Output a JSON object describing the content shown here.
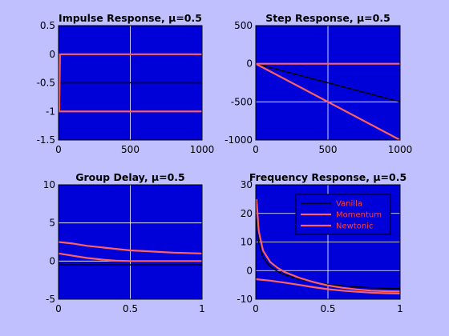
{
  "chart_data": [
    {
      "type": "line",
      "title": "Impulse Response, μ=0.5",
      "xlabel": "",
      "ylabel": "",
      "xlim": [
        0,
        1000
      ],
      "ylim": [
        -1.5,
        0.5
      ],
      "xticks": [
        "0",
        "500",
        "1000"
      ],
      "yticks": [
        "0.5",
        "0",
        "-0.5",
        "-1",
        "-1.5"
      ],
      "grid": true,
      "series": [
        {
          "color": "#000000",
          "x": [
            0,
            5,
            10,
            1000
          ],
          "y": [
            -0.5,
            -0.5,
            -0.5,
            -0.5
          ]
        },
        {
          "color": "#ff6060",
          "x": [
            0,
            5,
            10,
            1000
          ],
          "y": [
            -0.3,
            -1.0,
            0.0,
            0.0
          ]
        },
        {
          "color": "#ff6060",
          "x": [
            0,
            8,
            20,
            1000
          ],
          "y": [
            -1.0,
            -1.0,
            -1.0,
            -1.0
          ]
        }
      ]
    },
    {
      "type": "line",
      "title": "Step Response, μ=0.5",
      "xlabel": "",
      "ylabel": "",
      "xlim": [
        0,
        1000
      ],
      "ylim": [
        -1000,
        500
      ],
      "xticks": [
        "0",
        "500",
        "1000"
      ],
      "yticks": [
        "500",
        "0",
        "-500",
        "-1000"
      ],
      "grid": true,
      "series": [
        {
          "color": "#000000",
          "x": [
            0,
            1000
          ],
          "y": [
            0,
            -500
          ]
        },
        {
          "color": "#ff6060",
          "x": [
            0,
            1000
          ],
          "y": [
            0,
            0
          ]
        },
        {
          "color": "#ff6060",
          "x": [
            0,
            1000
          ],
          "y": [
            0,
            -1000
          ]
        }
      ]
    },
    {
      "type": "line",
      "title": "Group Delay, μ=0.5",
      "xlabel": "",
      "ylabel": "",
      "xlim": [
        0,
        1
      ],
      "ylim": [
        -5,
        10
      ],
      "xticks": [
        "0",
        "0.5",
        "1"
      ],
      "yticks": [
        "10",
        "5",
        "0",
        "-5"
      ],
      "grid": true,
      "series": [
        {
          "color": "#000000",
          "x": [
            0,
            0.5,
            1
          ],
          "y": [
            -0.5,
            -0.5,
            -0.5
          ]
        },
        {
          "color": "#ff6060",
          "x": [
            0,
            0.1,
            0.2,
            0.3,
            0.4,
            0.5,
            0.6,
            0.7,
            0.8,
            0.9,
            1.0
          ],
          "y": [
            2.5,
            2.3,
            2.0,
            1.8,
            1.6,
            1.4,
            1.3,
            1.2,
            1.1,
            1.05,
            1.0
          ]
        },
        {
          "color": "#ff6060",
          "x": [
            0,
            0.1,
            0.2,
            0.3,
            0.4,
            0.5,
            0.6,
            0.7,
            0.8,
            0.9,
            1.0
          ],
          "y": [
            1.0,
            0.7,
            0.4,
            0.2,
            0.05,
            0.0,
            0.0,
            0.0,
            0.0,
            0.0,
            0.0
          ]
        }
      ]
    },
    {
      "type": "line",
      "title": "Frequency Response, μ=0.5",
      "xlabel": "",
      "ylabel": "",
      "xlim": [
        0,
        1
      ],
      "ylim": [
        -10,
        30
      ],
      "xticks": [
        "0",
        "0.5",
        "1"
      ],
      "yticks": [
        "30",
        "20",
        "10",
        "0",
        "-10"
      ],
      "grid": true,
      "legend": {
        "position": "top-right",
        "entries": [
          "Vanilla",
          "Momentum",
          "Newtonic"
        ]
      },
      "series": [
        {
          "name": "Vanilla",
          "color": "#000000",
          "x": [
            0.005,
            0.02,
            0.05,
            0.1,
            0.15,
            0.2,
            0.3,
            0.4,
            0.5,
            0.6,
            0.7,
            0.8,
            0.9,
            1.0
          ],
          "y": [
            18,
            10,
            4.5,
            1.5,
            -0.3,
            -1.5,
            -3.0,
            -4.0,
            -4.8,
            -5.3,
            -5.7,
            -6.0,
            -6.2,
            -6.3
          ]
        },
        {
          "name": "Momentum",
          "color": "#ff6060",
          "x": [
            0.005,
            0.02,
            0.05,
            0.1,
            0.15,
            0.2,
            0.3,
            0.4,
            0.5,
            0.6,
            0.7,
            0.8,
            0.9,
            1.0
          ],
          "y": [
            25,
            14,
            7,
            3,
            1,
            -0.5,
            -2.5,
            -4.0,
            -5.2,
            -6.0,
            -6.6,
            -7.0,
            -7.2,
            -7.3
          ]
        },
        {
          "name": "Newtonic",
          "color": "#ff6060",
          "x": [
            0,
            0.1,
            0.2,
            0.3,
            0.4,
            0.5,
            0.6,
            0.7,
            0.8,
            0.9,
            1.0
          ],
          "y": [
            -3.0,
            -3.5,
            -4.2,
            -5.0,
            -5.8,
            -6.5,
            -7.0,
            -7.4,
            -7.7,
            -7.9,
            -8.0
          ]
        }
      ]
    }
  ]
}
